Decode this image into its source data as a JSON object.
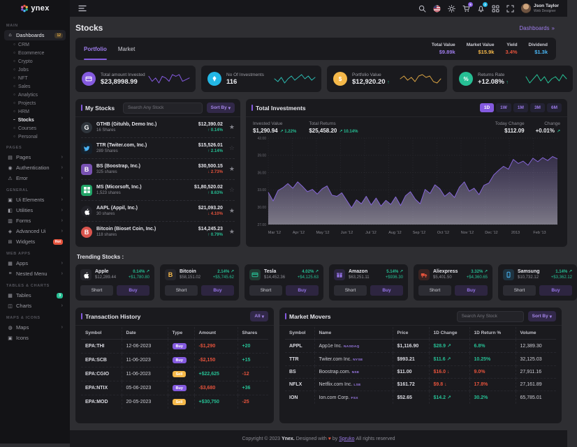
{
  "brand": {
    "name": "ynex",
    "logo_icon": "flower-logo-icon"
  },
  "header": {
    "icons": [
      {
        "name": "search-icon"
      },
      {
        "name": "us-flag-icon"
      },
      {
        "name": "theme-toggle-icon"
      },
      {
        "name": "cart-icon",
        "badge": "5",
        "badge_color": "#845adf"
      },
      {
        "name": "notifications-icon",
        "badge": "3",
        "badge_color": "#23b7e5"
      },
      {
        "name": "apps-grid-icon"
      },
      {
        "name": "fullscreen-icon"
      }
    ],
    "user": {
      "name": "Json Taylor",
      "role": "Web Designer"
    }
  },
  "page": {
    "title": "Stocks",
    "breadcrumb": "Dashboards",
    "breadcrumb_separator": "»"
  },
  "sidebar": {
    "sections": [
      {
        "label": "MAIN",
        "items": [
          {
            "label": "Dashboards",
            "icon": "home-icon",
            "glyph": "⌂",
            "active": true,
            "badge": {
              "text": "12",
              "style": "warning-outline"
            },
            "children": [
              "CRM",
              "Ecommerce",
              "Crypto",
              "Jobs",
              "NFT",
              "Sales",
              "Analytics",
              "Projects",
              "HRM",
              "Stocks",
              "Courses",
              "Personal"
            ],
            "active_child": "Stocks"
          }
        ]
      },
      {
        "label": "PAGES",
        "items": [
          {
            "label": "Pages",
            "icon": "pages-icon",
            "glyph": "▤",
            "arrow": true
          },
          {
            "label": "Authentication",
            "icon": "authentication-icon",
            "glyph": "◉",
            "arrow": true
          },
          {
            "label": "Error",
            "icon": "error-icon",
            "glyph": "⚠",
            "arrow": true
          }
        ]
      },
      {
        "label": "GENERAL",
        "items": [
          {
            "label": "Ui Elements",
            "icon": "ui-elements-icon",
            "glyph": "▣",
            "arrow": true
          },
          {
            "label": "Utilities",
            "icon": "utilities-icon",
            "glyph": "◧",
            "arrow": true
          },
          {
            "label": "Forms",
            "icon": "forms-icon",
            "glyph": "▥",
            "arrow": true
          },
          {
            "label": "Advanced Ui",
            "icon": "advanced-ui-icon",
            "glyph": "◈",
            "arrow": true
          },
          {
            "label": "Widgets",
            "icon": "widgets-icon",
            "glyph": "⊞",
            "badge": {
              "text": "Hot",
              "style": "danger"
            }
          }
        ]
      },
      {
        "label": "WEB APPS",
        "items": [
          {
            "label": "Apps",
            "icon": "apps-icon",
            "glyph": "▦",
            "arrow": true
          },
          {
            "label": "Nested Menu",
            "icon": "nested-menu-icon",
            "glyph": "≡",
            "arrow": true
          }
        ]
      },
      {
        "label": "TABLES & CHARTS",
        "items": [
          {
            "label": "Tables",
            "icon": "tables-icon",
            "glyph": "▦",
            "badge": {
              "text": "3",
              "style": "success"
            }
          },
          {
            "label": "Charts",
            "icon": "charts-icon",
            "glyph": "◫",
            "arrow": true
          }
        ]
      },
      {
        "label": "MAPS & ICONS",
        "items": [
          {
            "label": "Maps",
            "icon": "maps-icon",
            "glyph": "◍",
            "arrow": true
          },
          {
            "label": "Icons",
            "icon": "icons-icon",
            "glyph": "▣"
          }
        ]
      }
    ]
  },
  "tabs": {
    "items": [
      "Portfolio",
      "Market"
    ],
    "active": "Portfolio"
  },
  "summary_stats": [
    {
      "label": "Total Value",
      "value": "$9.89k",
      "color": "#9d7bea"
    },
    {
      "label": "Market Value",
      "value": "$15.9k",
      "color": "#f5b849"
    },
    {
      "label": "Yield",
      "value": "3.4%",
      "color": "#e6533c"
    },
    {
      "label": "Dividend",
      "value": "$1.3k",
      "color": "#49b6f5"
    }
  ],
  "stat_cards": [
    {
      "label": "Total amount Invested",
      "value": "$23,8998.99",
      "icon": "wallet-icon",
      "icon_bg": "#845adf",
      "spark_color": "#845adf",
      "spark": [
        6,
        3,
        5,
        2,
        6,
        5,
        3,
        7,
        6,
        7,
        3,
        4,
        5
      ]
    },
    {
      "label": "No Of Investments",
      "value": "116",
      "icon": "gem-icon",
      "icon_bg": "#23b7e5",
      "spark_color": "#2bbcb2",
      "spark": [
        5,
        3,
        6,
        2,
        5,
        7,
        4,
        6,
        8,
        5,
        7,
        4,
        6
      ]
    },
    {
      "label": "Portfolio Value",
      "value": "$12,920.20",
      "arrow": "↑",
      "icon": "coin-icon",
      "icon_bg": "#f5b849",
      "spark_color": "#d8a243",
      "spark": [
        5,
        7,
        4,
        6,
        3,
        7,
        8,
        6,
        7,
        3,
        2,
        5
      ]
    },
    {
      "label": "Returns Rate",
      "value": "+12.08%",
      "arrow": "↑",
      "icon": "percent-icon",
      "icon_bg": "#26bf94",
      "spark_color": "#26bf94",
      "spark": [
        6,
        3,
        5,
        7,
        4,
        6,
        3,
        5,
        6,
        4,
        7,
        5
      ]
    }
  ],
  "my_stocks": {
    "title": "My Stocks",
    "search_placeholder": "Search Any Stock",
    "sort_label": "Sort By",
    "items": [
      {
        "symbol": "GTHB (Gituhb, Demo Inc.)",
        "shares": "16 Shares",
        "value": "$12,390.02",
        "change": "0.14%",
        "dir": "up",
        "icon": "github-icon",
        "icon_bg": "#30363d",
        "icon_color": "#ffffff",
        "shape": "circle",
        "starred": true
      },
      {
        "symbol": "TTR (Twiter.com, Inc.)",
        "shares": "289 Shares",
        "value": "$15,526.01",
        "change": "2.14%",
        "dir": "up",
        "icon": "twitter-icon",
        "icon_bg": "#15202b",
        "icon_color": "#4ab3f4",
        "shape": "square",
        "starred": false
      },
      {
        "symbol": "BS (Boostrap, Inc.)",
        "shares": "325 shares",
        "value": "$30,500.15",
        "change": "2.73%",
        "dir": "down",
        "icon": "bootstrap-icon",
        "icon_bg": "#7952b3",
        "icon_color": "#ffffff",
        "shape": "square",
        "starred": true
      },
      {
        "symbol": "MS (Micorsoft, Inc.)",
        "shares": "1,523 shares",
        "value": "$1,80,520.02",
        "change": "8.63%",
        "dir": "up",
        "icon": "microsoft-icon",
        "icon_bg": "#21a366",
        "icon_color": "#ffffff",
        "shape": "square",
        "starred": false
      },
      {
        "symbol": "AAPL (Appil, Inc.)",
        "shares": "30 shares",
        "value": "$21,093.20",
        "change": "4.10%",
        "dir": "down",
        "icon": "apple-icon",
        "icon_bg": "#222228",
        "icon_color": "#ffffff",
        "shape": "circle",
        "starred": true
      },
      {
        "symbol": "Bitcoin (Bioset Coin, Inc.)",
        "shares": "118 shares",
        "value": "$14,245.23",
        "change": "0.79%",
        "dir": "up",
        "icon": "bitcoin-icon",
        "icon_bg": "#d9544d",
        "icon_color": "#ffffff",
        "shape": "circle",
        "starred": true
      }
    ]
  },
  "total_investments": {
    "title": "Total Investments",
    "ranges": [
      "1D",
      "1W",
      "1M",
      "3M",
      "6M"
    ],
    "active_range": "1D",
    "left_stats": [
      {
        "label": "Invested Value",
        "value": "$1,290.94",
        "change": "1.22%",
        "dir": "up"
      },
      {
        "label": "Total Returns",
        "value": "$25,458.20",
        "change": "10.14%",
        "dir": "up"
      }
    ],
    "right_stats": [
      {
        "label": "Today Change",
        "value": "$112.09"
      },
      {
        "label": "Change",
        "value": "+0.01%",
        "dir": "up"
      }
    ]
  },
  "chart_data": {
    "type": "area",
    "title": "Total Investments",
    "line_color": "#8666d8",
    "x_labels": [
      "Mar '12",
      "Apr '12",
      "May '12",
      "Jun '12",
      "Jul '12",
      "Aug '12",
      "Sep '12",
      "Oct '12",
      "Nov '12",
      "Dec '12",
      "2013",
      "Feb '13"
    ],
    "y_tick_labels": [
      "42.00",
      "39.00",
      "36.00",
      "33.00",
      "30.00",
      "27.00"
    ],
    "ylim": [
      27,
      42
    ],
    "grid": true,
    "series": [
      {
        "name": "Invested",
        "values": [
          32.6,
          31.1,
          32.9,
          33.4,
          34.1,
          33.3,
          34.4,
          33.6,
          32.7,
          33.1,
          32.3,
          33.2,
          33.7,
          32.1,
          31.9,
          32.5,
          31.2,
          29.9,
          31.3,
          30.6,
          31.9,
          30.4,
          31.6,
          30.2,
          31.2,
          30.5,
          31.8,
          30.3,
          32.0,
          32.7,
          31.4,
          30.6,
          33.1,
          32.4,
          33.9,
          33.2,
          31.9,
          32.6,
          31.7,
          33.5,
          34.4,
          32.8,
          33.3,
          32.2,
          33.8,
          34.2,
          35.6,
          36.4,
          37.1,
          36.6,
          38.3,
          37.6,
          38.0,
          37.3,
          38.5,
          37.9,
          38.6,
          38.1,
          38.8,
          38.4
        ]
      }
    ]
  },
  "trending": {
    "title": "Trending Stocks :",
    "short_label": "Short",
    "buy_label": "Buy",
    "items": [
      {
        "name": "Apple",
        "price": "$12,289.44",
        "percent": "0.14%",
        "gain": "+$1,780.80",
        "icon": "apple-icon",
        "icon_bg": "#26262c",
        "icon_color": "#ffffff"
      },
      {
        "name": "Bitcoin",
        "price": "$58,151.02",
        "percent": "2.14%",
        "gain": "+$5,745.62",
        "icon": "bitcoin-icon",
        "icon_bg": "#26262c",
        "icon_color": "#f5b849"
      },
      {
        "name": "Tesla",
        "price": "$14,452.36",
        "percent": "4.02%",
        "gain": "+$4,125.63",
        "icon": "tesla-icon",
        "icon_bg": "#223b33",
        "icon_color": "#26bf94"
      },
      {
        "name": "Amazon",
        "price": "$63,251.11",
        "percent": "5.14%",
        "gain": "+$936.30",
        "icon": "amazon-icon",
        "icon_bg": "#2c2540",
        "icon_color": "#9674e8"
      },
      {
        "name": "Aliexpress",
        "price": "$5,401.50",
        "percent": "3.32%",
        "gain": "+$4,360.65",
        "icon": "aliexpress-icon",
        "icon_bg": "#3a2422",
        "icon_color": "#e6533c"
      },
      {
        "name": "Samsung",
        "price": "$10,732.12",
        "percent": "1.14%",
        "gain": "+$3,362.12",
        "icon": "samsung-icon",
        "icon_bg": "#1f3340",
        "icon_color": "#49b6f5"
      }
    ]
  },
  "transactions": {
    "title": "Transaction History",
    "filter_label": "All",
    "columns": [
      "Symbol",
      "Date",
      "Type",
      "Amount",
      "Shares"
    ],
    "rows": [
      {
        "symbol": "EPA:THI",
        "date": "12-06-2023",
        "type": "Buy",
        "amount": "-$1,290",
        "shares": "+20"
      },
      {
        "symbol": "EPA:SCB",
        "date": "11-06-2023",
        "type": "Buy",
        "amount": "-$2,150",
        "shares": "+15"
      },
      {
        "symbol": "EPA:CGIO",
        "date": "11-06-2023",
        "type": "Sell",
        "amount": "+$22,625",
        "shares": "-12"
      },
      {
        "symbol": "EPA:NTIX",
        "date": "05-06-2023",
        "type": "Buy",
        "amount": "-$3,680",
        "shares": "+36"
      },
      {
        "symbol": "EPA:MOD",
        "date": "20-05-2023",
        "type": "Sell",
        "amount": "+$30,750",
        "shares": "-25"
      }
    ]
  },
  "market_movers": {
    "title": "Market Movers",
    "search_placeholder": "Search Any Stock",
    "sort_label": "Sort By",
    "columns": [
      "Symbol",
      "Name",
      "Price",
      "1D Change",
      "1D Return %",
      "Volume"
    ],
    "rows": [
      {
        "symbol": "APPL",
        "name": "App1e Inc.",
        "exchange": "NASDAQ",
        "price": "$1,116.90",
        "change": "$28.9",
        "dir": "up",
        "return_pct": "6.8%",
        "volume": "12,389.30"
      },
      {
        "symbol": "TTR",
        "name": "Twiter.com Inc.",
        "exchange": "NYSE",
        "price": "$993.21",
        "change": "$11.6",
        "dir": "up",
        "return_pct": "10.25%",
        "volume": "32,125.03"
      },
      {
        "symbol": "BS",
        "name": "Boostrap.com.",
        "exchange": "NSE",
        "price": "$11.00",
        "change": "$16.0",
        "dir": "down",
        "return_pct": "9.0%",
        "volume": "27,911.16"
      },
      {
        "symbol": "NFLX",
        "name": "Netflix.com Inc.",
        "exchange": "LSE",
        "price": "$161.72",
        "change": "$9.8",
        "dir": "down",
        "return_pct": "17.8%",
        "volume": "27,161.89"
      },
      {
        "symbol": "ION",
        "name": "Ion.com Corp.",
        "exchange": "FSX",
        "price": "$52.65",
        "change": "$14.2",
        "dir": "up",
        "return_pct": "30.2%",
        "volume": "65,785.01"
      }
    ]
  },
  "footer": {
    "prefix": "Copyright © 2023",
    "brand": "Ynex.",
    "middle": "Designed with",
    "by": "by",
    "designer": "Spruko",
    "suffix": "All rights reserved"
  }
}
